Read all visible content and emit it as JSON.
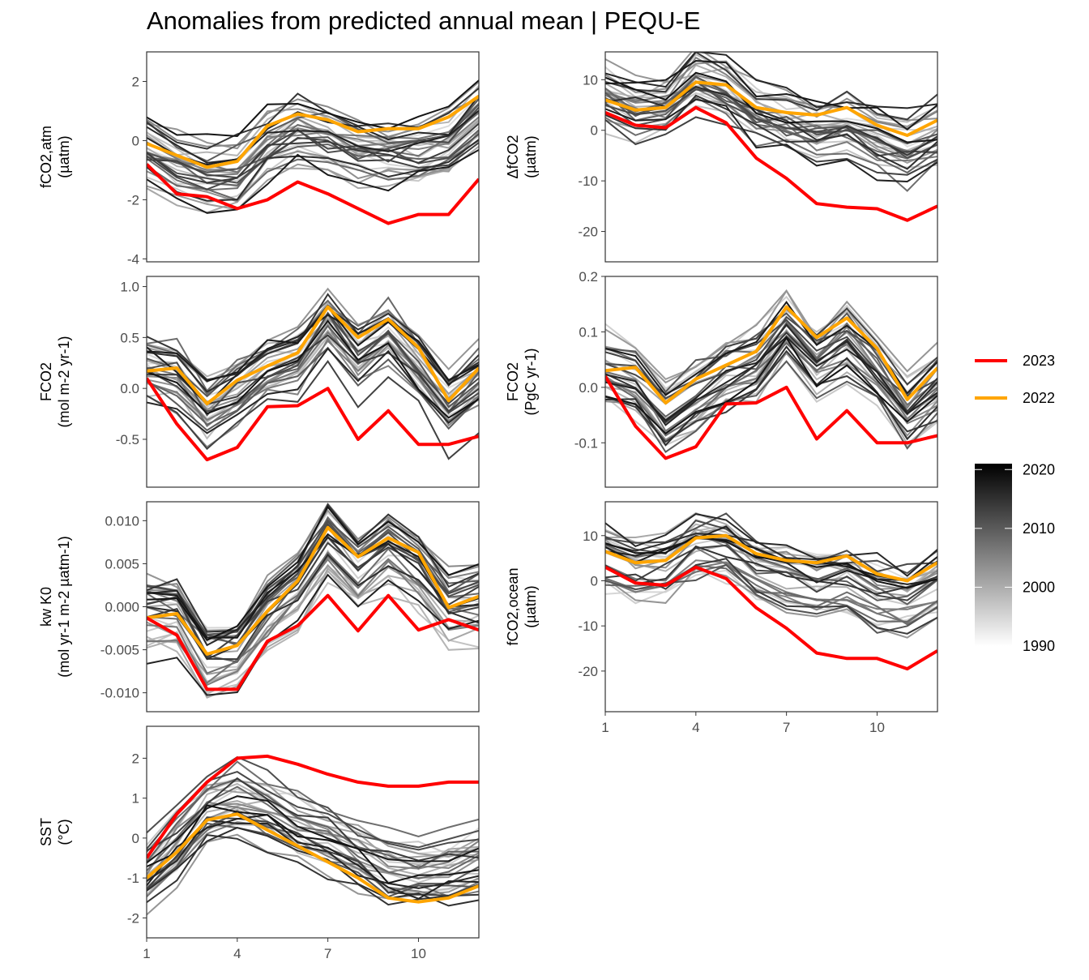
{
  "title": "Anomalies from predicted annual mean | PEQU-E",
  "legend": {
    "highlight": [
      {
        "label": "2023",
        "color": "#ff0000"
      },
      {
        "label": "2022",
        "color": "#ffa500"
      }
    ],
    "colorbar": {
      "ticks": [
        "2020",
        "2010",
        "2000",
        "1990"
      ],
      "range": [
        1990,
        2021
      ],
      "low_color": "#ffffff",
      "high_color": "#000000"
    }
  },
  "chart_data": [
    {
      "id": "fco2_atm",
      "type": "line",
      "ylabel": [
        "fCO2,atm",
        "(µatm)"
      ],
      "ylim": [
        -4.1,
        3.0
      ],
      "yticks": [
        -4,
        -2,
        0,
        2
      ],
      "xticks": [
        1,
        4,
        7,
        10
      ],
      "x": [
        1,
        2,
        3,
        4,
        5,
        6,
        7,
        8,
        9,
        10,
        11,
        12
      ],
      "series": [
        {
          "name": "2023",
          "values": [
            -0.8,
            -1.8,
            -1.9,
            -2.3,
            -2.0,
            -1.4,
            -1.8,
            -2.3,
            -2.8,
            -2.5,
            -2.5,
            -1.3
          ]
        },
        {
          "name": "2022",
          "values": [
            -0.1,
            -0.5,
            -0.9,
            -0.7,
            0.5,
            0.9,
            0.7,
            0.3,
            0.4,
            0.4,
            0.8,
            1.5
          ]
        }
      ]
    },
    {
      "id": "delta_fco2",
      "type": "line",
      "ylabel": [
        "ΔfCO2",
        "(µatm)"
      ],
      "ylim": [
        -26,
        15.5
      ],
      "yticks": [
        -20,
        -10,
        0,
        10
      ],
      "xticks": [
        1,
        4,
        7,
        10
      ],
      "x": [
        1,
        2,
        3,
        4,
        5,
        6,
        7,
        8,
        9,
        10,
        11,
        12
      ],
      "series": [
        {
          "name": "2023",
          "values": [
            3.5,
            1,
            0.5,
            4.5,
            1.5,
            -5.5,
            -9.5,
            -14.5,
            -15.2,
            -15.5,
            -17.8,
            -15
          ]
        },
        {
          "name": "2022",
          "values": [
            6,
            4,
            4.5,
            9.5,
            9,
            4.5,
            3.5,
            3,
            4.5,
            1,
            -1,
            2
          ]
        }
      ]
    },
    {
      "id": "fco2_flux_area",
      "type": "line",
      "ylabel": [
        "FCO2",
        "(mol m-2 yr-1)"
      ],
      "ylim": [
        -0.97,
        1.1
      ],
      "yticks": [
        -0.5,
        0.0,
        0.5,
        1.0
      ],
      "xticks": [
        1,
        4,
        7,
        10
      ],
      "x": [
        1,
        2,
        3,
        4,
        5,
        6,
        7,
        8,
        9,
        10,
        11,
        12
      ],
      "series": [
        {
          "name": "2023",
          "values": [
            0.1,
            -0.35,
            -0.7,
            -0.58,
            -0.18,
            -0.17,
            0.0,
            -0.5,
            -0.22,
            -0.55,
            -0.55,
            -0.47
          ]
        },
        {
          "name": "2022",
          "values": [
            0.17,
            0.2,
            -0.15,
            0.08,
            0.22,
            0.35,
            0.8,
            0.5,
            0.68,
            0.4,
            -0.12,
            0.2
          ]
        }
      ]
    },
    {
      "id": "fco2_flux_total",
      "type": "line",
      "ylabel": [
        "FCO2",
        "(PgC yr-1)"
      ],
      "ylim": [
        -0.18,
        0.2
      ],
      "yticks": [
        -0.1,
        0.0,
        0.1,
        0.2
      ],
      "xticks": [
        1,
        4,
        7,
        10
      ],
      "x": [
        1,
        2,
        3,
        4,
        5,
        6,
        7,
        8,
        9,
        10,
        11,
        12
      ],
      "series": [
        {
          "name": "2023",
          "values": [
            0.02,
            -0.07,
            -0.128,
            -0.107,
            -0.03,
            -0.028,
            0.0,
            -0.093,
            -0.042,
            -0.1,
            -0.1,
            -0.087
          ]
        },
        {
          "name": "2022",
          "values": [
            0.03,
            0.036,
            -0.028,
            0.015,
            0.04,
            0.065,
            0.145,
            0.09,
            0.125,
            0.07,
            -0.022,
            0.035
          ]
        }
      ]
    },
    {
      "id": "kw_k0",
      "type": "line",
      "ylabel": [
        "kw K0",
        "(mol yr-1 m-2 µatm-1)"
      ],
      "ylim": [
        -0.0122,
        0.0122
      ],
      "yticks": [
        -0.01,
        -0.005,
        0.0,
        0.005,
        0.01
      ],
      "xticks": [
        1,
        4,
        7,
        10
      ],
      "x": [
        1,
        2,
        3,
        4,
        5,
        6,
        7,
        8,
        9,
        10,
        11,
        12
      ],
      "series": [
        {
          "name": "2023",
          "values": [
            -0.0013,
            -0.0033,
            -0.0096,
            -0.0096,
            -0.004,
            -0.0022,
            0.0013,
            -0.0028,
            0.0013,
            -0.0027,
            -0.0015,
            -0.0027
          ]
        },
        {
          "name": "2022",
          "values": [
            -0.0013,
            -0.0008,
            -0.0055,
            -0.0045,
            -0.0005,
            0.003,
            0.0092,
            0.0058,
            0.008,
            0.0063,
            -0.0001,
            0.0012
          ]
        }
      ]
    },
    {
      "id": "fco2_ocean",
      "type": "line",
      "ylabel": [
        "fCO2,ocean",
        "(µatm)"
      ],
      "ylim": [
        -29,
        17.5
      ],
      "yticks": [
        -20,
        -10,
        0,
        10
      ],
      "xticks": [
        1,
        4,
        7,
        10
      ],
      "x": [
        1,
        2,
        3,
        4,
        5,
        6,
        7,
        8,
        9,
        10,
        11,
        12
      ],
      "series": [
        {
          "name": "2023",
          "values": [
            3,
            -0.5,
            -1,
            3,
            0.5,
            -6,
            -10.5,
            -16,
            -17.2,
            -17.2,
            -19.5,
            -15.5
          ]
        },
        {
          "name": "2022",
          "values": [
            6.5,
            4,
            4.5,
            9.5,
            10,
            6,
            4.5,
            4,
            5.5,
            1.5,
            0,
            4
          ]
        }
      ]
    },
    {
      "id": "sst",
      "type": "line",
      "ylabel": [
        "SST",
        "(°C)"
      ],
      "ylim": [
        -2.5,
        2.8
      ],
      "yticks": [
        -2,
        -1,
        0,
        1,
        2
      ],
      "xticks": [
        1,
        4,
        7,
        10
      ],
      "x": [
        1,
        2,
        3,
        4,
        5,
        6,
        7,
        8,
        9,
        10,
        11,
        12
      ],
      "series": [
        {
          "name": "2023",
          "values": [
            -0.5,
            0.6,
            1.4,
            2.0,
            2.05,
            1.85,
            1.6,
            1.4,
            1.3,
            1.3,
            1.4,
            1.4
          ]
        },
        {
          "name": "2022",
          "values": [
            -1.0,
            -0.35,
            0.45,
            0.6,
            0.2,
            -0.2,
            -0.6,
            -1.0,
            -1.5,
            -1.6,
            -1.5,
            -1.2
          ]
        }
      ]
    }
  ]
}
